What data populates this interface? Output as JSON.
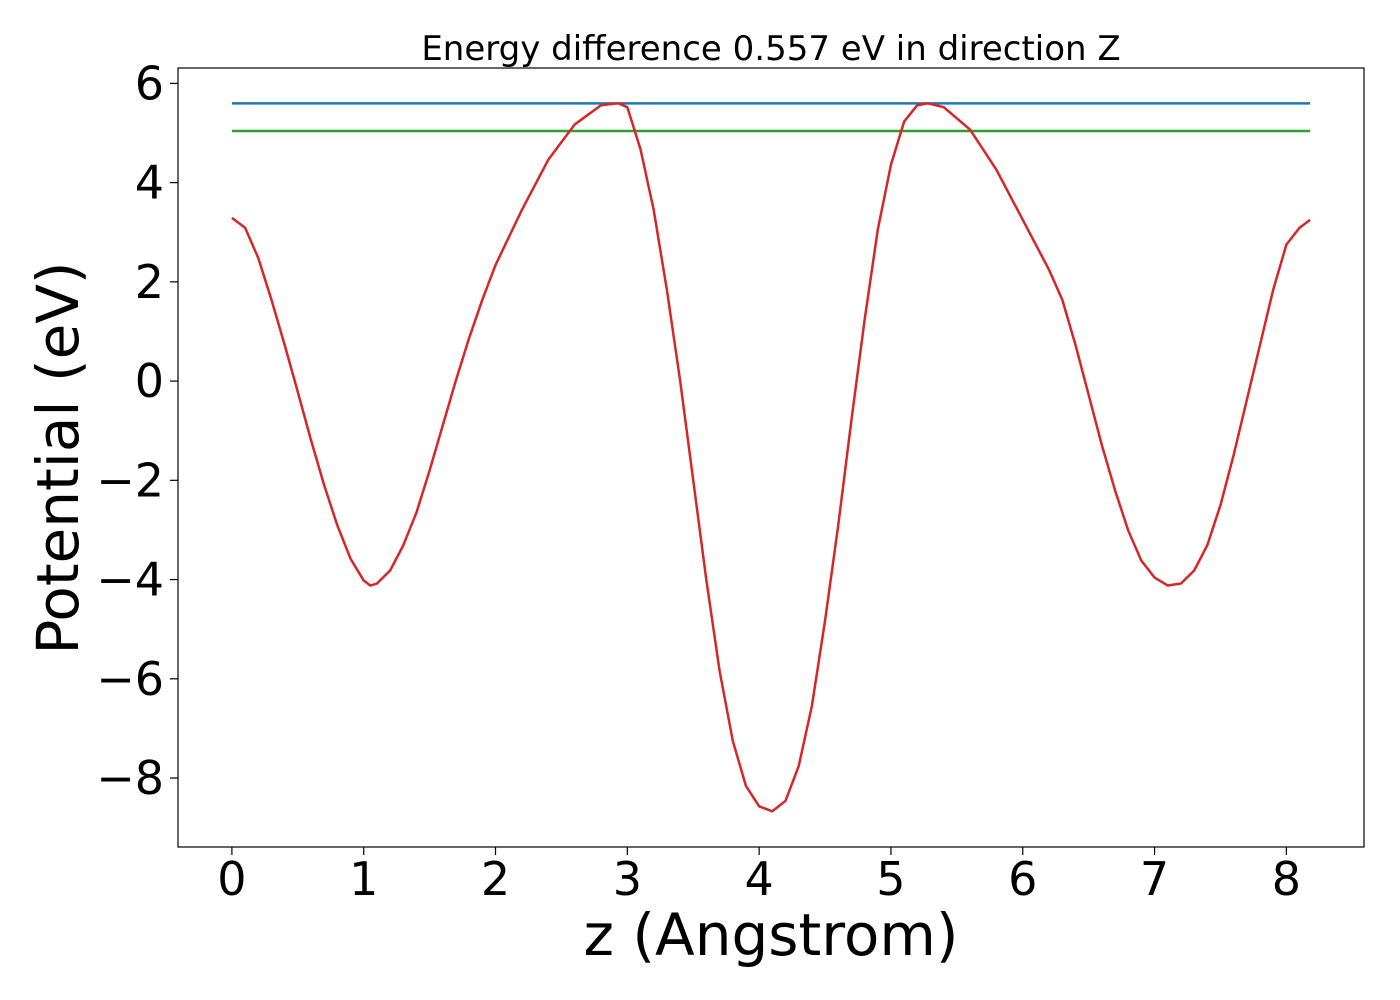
{
  "chart_data": {
    "type": "line",
    "title": "Energy difference 0.557 eV in direction Z",
    "xlabel": "z (Angstrom)",
    "ylabel": "Potential (eV)",
    "xlim": [
      -0.409,
      8.589
    ],
    "ylim": [
      -9.39,
      6.31
    ],
    "xticks": [
      0,
      1,
      2,
      3,
      4,
      5,
      6,
      7,
      8
    ],
    "yticks": [
      {
        "value": -8,
        "label": "−8"
      },
      {
        "value": -6,
        "label": "−6"
      },
      {
        "value": -4,
        "label": "−4"
      },
      {
        "value": -2,
        "label": "−2"
      },
      0,
      2,
      4,
      6
    ],
    "grid": false,
    "series": [
      {
        "color": "#1f77b4",
        "x": [
          0,
          8.18
        ],
        "values": [
          5.597,
          5.597
        ]
      },
      {
        "color": "#2ca02c",
        "x": [
          0,
          8.18
        ],
        "values": [
          5.04,
          5.04
        ]
      },
      {
        "color": "#d62728",
        "x": [
          0,
          0.1,
          0.2,
          0.3,
          0.4,
          0.5,
          0.6,
          0.7,
          0.8,
          0.9,
          1.0,
          1.05,
          1.1,
          1.2,
          1.3,
          1.4,
          1.5,
          1.6,
          1.7,
          1.8,
          1.9,
          2.0,
          2.2,
          2.4,
          2.6,
          2.8,
          2.93,
          3.0,
          3.1,
          3.2,
          3.3,
          3.4,
          3.5,
          3.6,
          3.7,
          3.8,
          3.9,
          4.0,
          4.1,
          4.2,
          4.3,
          4.4,
          4.5,
          4.6,
          4.7,
          4.8,
          4.9,
          5.0,
          5.1,
          5.2,
          5.28,
          5.4,
          5.6,
          5.8,
          6.0,
          6.2,
          6.3,
          6.4,
          6.5,
          6.6,
          6.7,
          6.8,
          6.9,
          7.0,
          7.1,
          7.2,
          7.3,
          7.4,
          7.5,
          7.6,
          7.7,
          7.8,
          7.9,
          8.0,
          8.1,
          8.18
        ],
        "values": [
          3.29,
          3.09,
          2.48,
          1.64,
          0.73,
          -0.22,
          -1.19,
          -2.1,
          -2.91,
          -3.58,
          -4.02,
          -4.12,
          -4.08,
          -3.82,
          -3.31,
          -2.65,
          -1.8,
          -0.89,
          0.02,
          0.87,
          1.64,
          2.34,
          3.45,
          4.46,
          5.17,
          5.56,
          5.6,
          5.52,
          4.67,
          3.45,
          1.84,
          0.02,
          -2.0,
          -4.02,
          -5.84,
          -7.25,
          -8.16,
          -8.57,
          -8.67,
          -8.46,
          -7.76,
          -6.55,
          -4.83,
          -2.91,
          -0.79,
          1.23,
          3.05,
          4.36,
          5.23,
          5.56,
          5.6,
          5.52,
          5.07,
          4.26,
          3.25,
          2.24,
          1.64,
          0.73,
          -0.28,
          -1.29,
          -2.2,
          -3.01,
          -3.62,
          -3.96,
          -4.12,
          -4.08,
          -3.82,
          -3.31,
          -2.5,
          -1.49,
          -0.38,
          0.73,
          1.84,
          2.75,
          3.09,
          3.25
        ]
      }
    ]
  }
}
